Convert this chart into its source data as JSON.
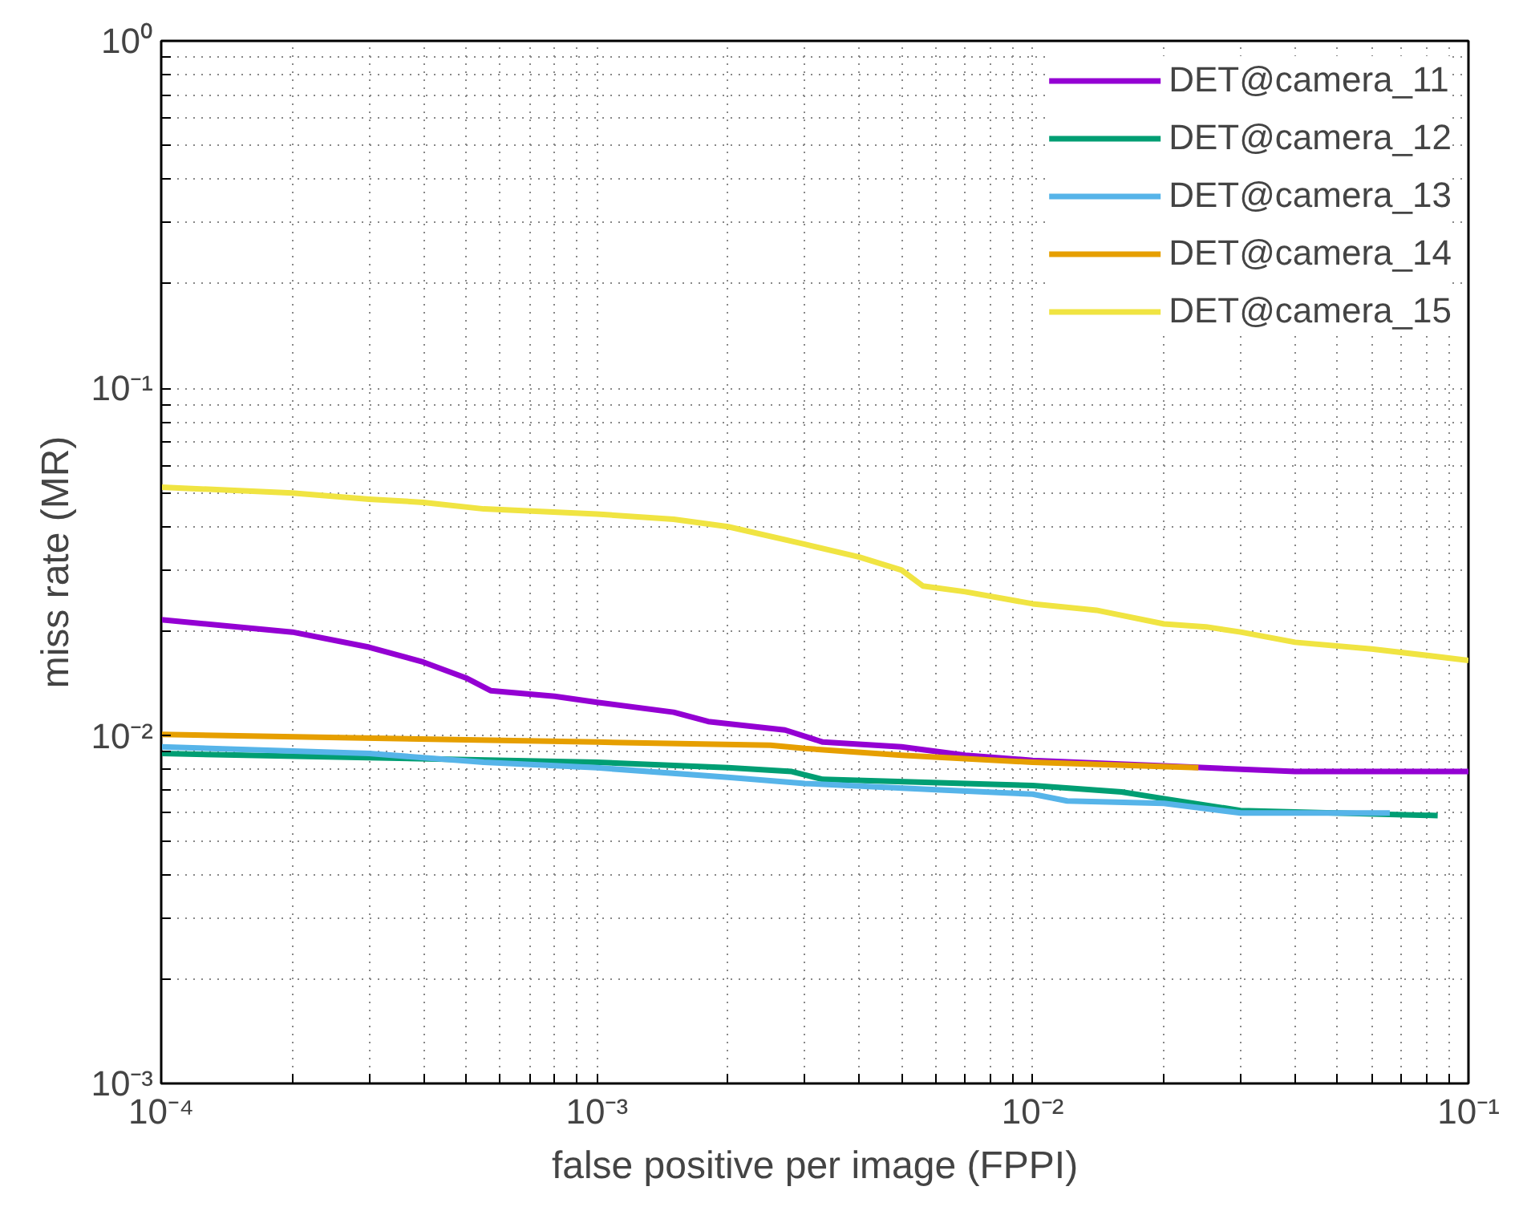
{
  "chart_data": {
    "type": "line",
    "xlabel": "false positive per image (FPPI)",
    "ylabel": "miss rate (MR)",
    "log": "xy",
    "grid": true,
    "legend": "top right",
    "line_style": "solid",
    "marker": "none",
    "xlim": [
      0.0001,
      0.1
    ],
    "ylim": [
      0.001,
      1
    ],
    "xticks": [
      {
        "value": 0.0001,
        "label": "10⁻⁴"
      },
      {
        "value": 0.0002,
        "label": null
      },
      {
        "value": 0.0003,
        "label": null
      },
      {
        "value": 0.0004,
        "label": null
      },
      {
        "value": 0.0005,
        "label": null
      },
      {
        "value": 0.0006,
        "label": null
      },
      {
        "value": 0.0007,
        "label": null
      },
      {
        "value": 0.0008,
        "label": null
      },
      {
        "value": 0.0009,
        "label": null
      },
      {
        "value": 0.001,
        "label": "10⁻³"
      },
      {
        "value": 0.002,
        "label": null
      },
      {
        "value": 0.003,
        "label": null
      },
      {
        "value": 0.004,
        "label": null
      },
      {
        "value": 0.005,
        "label": null
      },
      {
        "value": 0.006,
        "label": null
      },
      {
        "value": 0.007,
        "label": null
      },
      {
        "value": 0.008,
        "label": null
      },
      {
        "value": 0.009,
        "label": null
      },
      {
        "value": 0.01,
        "label": "10⁻²"
      },
      {
        "value": 0.02,
        "label": null
      },
      {
        "value": 0.03,
        "label": null
      },
      {
        "value": 0.04,
        "label": null
      },
      {
        "value": 0.05,
        "label": null
      },
      {
        "value": 0.06,
        "label": null
      },
      {
        "value": 0.07,
        "label": null
      },
      {
        "value": 0.08,
        "label": null
      },
      {
        "value": 0.09,
        "label": null
      },
      {
        "value": 0.1,
        "label": "10⁻¹"
      }
    ],
    "yticks": [
      {
        "value": 0.001,
        "label": "10⁻³"
      },
      {
        "value": 0.002,
        "label": null
      },
      {
        "value": 0.003,
        "label": null
      },
      {
        "value": 0.004,
        "label": null
      },
      {
        "value": 0.005,
        "label": null
      },
      {
        "value": 0.006,
        "label": null
      },
      {
        "value": 0.007,
        "label": null
      },
      {
        "value": 0.008,
        "label": null
      },
      {
        "value": 0.009,
        "label": null
      },
      {
        "value": 0.01,
        "label": "10⁻²"
      },
      {
        "value": 0.02,
        "label": null
      },
      {
        "value": 0.03,
        "label": null
      },
      {
        "value": 0.04,
        "label": null
      },
      {
        "value": 0.05,
        "label": null
      },
      {
        "value": 0.06,
        "label": null
      },
      {
        "value": 0.07,
        "label": null
      },
      {
        "value": 0.08,
        "label": null
      },
      {
        "value": 0.09,
        "label": null
      },
      {
        "value": 0.1,
        "label": "10⁻¹"
      },
      {
        "value": 0.2,
        "label": null
      },
      {
        "value": 0.3,
        "label": null
      },
      {
        "value": 0.4,
        "label": null
      },
      {
        "value": 0.5,
        "label": null
      },
      {
        "value": 0.6,
        "label": null
      },
      {
        "value": 0.7,
        "label": null
      },
      {
        "value": 0.8,
        "label": null
      },
      {
        "value": 0.9,
        "label": null
      },
      {
        "value": 1,
        "label": "10⁰"
      }
    ],
    "series": [
      {
        "name": "DET@camera_11",
        "color": "#9400d3",
        "x": [
          0.0001,
          0.0002,
          0.0003,
          0.0004,
          0.0005,
          0.00057,
          0.0008,
          0.001,
          0.0015,
          0.0018,
          0.0027,
          0.0033,
          0.005,
          0.007,
          0.01,
          0.02,
          0.04,
          0.1
        ],
        "values": [
          0.0216,
          0.0199,
          0.018,
          0.0163,
          0.0147,
          0.0135,
          0.013,
          0.0125,
          0.0117,
          0.011,
          0.0104,
          0.0096,
          0.0093,
          0.0088,
          0.0085,
          0.0082,
          0.0079,
          0.0079
        ]
      },
      {
        "name": "DET@camera_12",
        "color": "#009e73",
        "x": [
          0.0001,
          0.001,
          0.002,
          0.0028,
          0.0033,
          0.01,
          0.016,
          0.02,
          0.03,
          0.085
        ],
        "values": [
          0.0089,
          0.0084,
          0.0081,
          0.0079,
          0.0075,
          0.0072,
          0.0069,
          0.0066,
          0.0061,
          0.0059
        ]
      },
      {
        "name": "DET@camera_13",
        "color": "#56b4e9",
        "x": [
          0.0001,
          0.0003,
          0.00055,
          0.001,
          0.002,
          0.003,
          0.006,
          0.01,
          0.012,
          0.02,
          0.03,
          0.066
        ],
        "values": [
          0.0093,
          0.0089,
          0.0084,
          0.0081,
          0.0076,
          0.0073,
          0.007,
          0.0068,
          0.0065,
          0.0064,
          0.006,
          0.006
        ]
      },
      {
        "name": "DET@camera_14",
        "color": "#e69f00",
        "x": [
          0.0001,
          0.001,
          0.0025,
          0.003,
          0.005,
          0.01,
          0.024
        ],
        "values": [
          0.0101,
          0.0096,
          0.0094,
          0.0092,
          0.0088,
          0.0084,
          0.0081
        ]
      },
      {
        "name": "DET@camera_15",
        "color": "#f0e442",
        "x": [
          0.0001,
          0.0002,
          0.0003,
          0.0004,
          0.00055,
          0.001,
          0.0015,
          0.002,
          0.003,
          0.004,
          0.005,
          0.0056,
          0.007,
          0.01,
          0.014,
          0.02,
          0.025,
          0.03,
          0.04,
          0.06,
          0.1
        ],
        "values": [
          0.052,
          0.05,
          0.048,
          0.047,
          0.045,
          0.0435,
          0.042,
          0.04,
          0.0356,
          0.0327,
          0.03,
          0.027,
          0.026,
          0.024,
          0.023,
          0.021,
          0.0206,
          0.0199,
          0.0186,
          0.0178,
          0.0165
        ]
      }
    ]
  }
}
